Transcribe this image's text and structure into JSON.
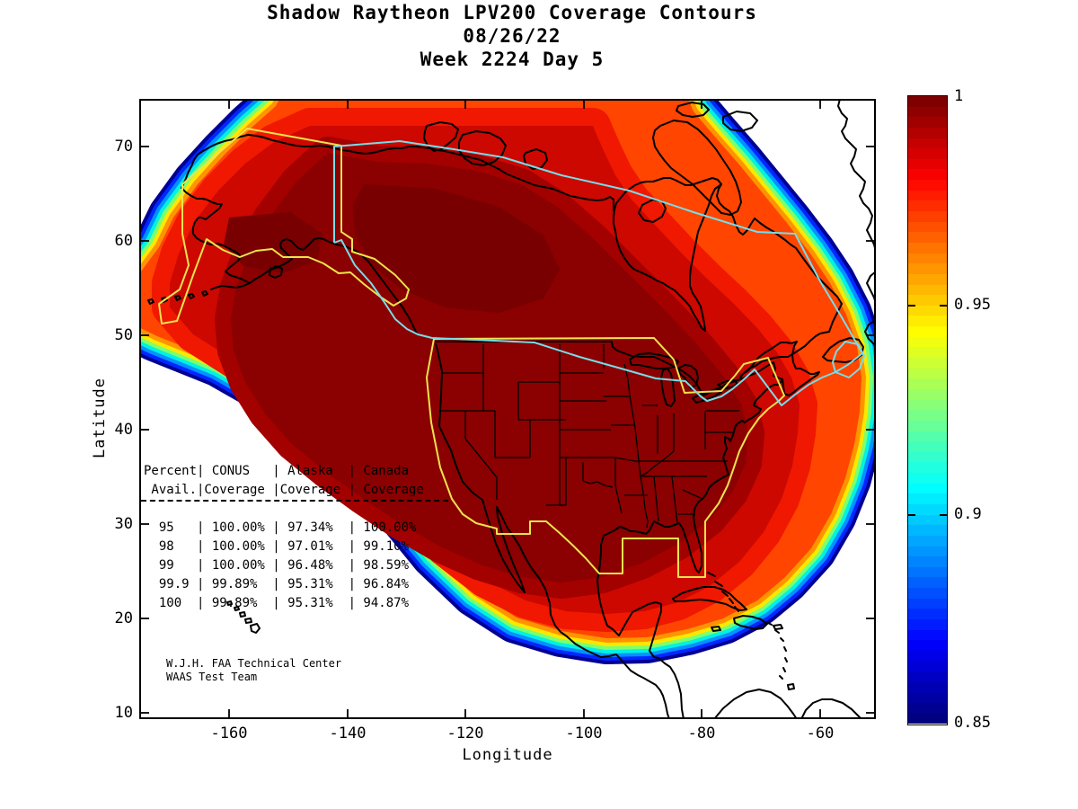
{
  "title": {
    "line1": "Shadow Raytheon LPV200 Coverage Contours",
    "line2": "08/26/22",
    "line3": "Week 2224 Day 5"
  },
  "axes": {
    "xlabel": "Longitude",
    "ylabel": "Latitude",
    "x_tick_labels": [
      "-160",
      "-140",
      "-120",
      "-100",
      "-80",
      "-60"
    ],
    "y_tick_labels": [
      "70",
      "60",
      "50",
      "40",
      "30",
      "20",
      "10"
    ]
  },
  "colorbar": {
    "labels": [
      "1",
      "0.95",
      "0.9",
      "0.85"
    ],
    "min": 0.85,
    "max": 1.0,
    "colormap": "jet",
    "n_bands": 60
  },
  "coverage_table": {
    "header_row1": [
      "Percent",
      "CONUS",
      "Alaska",
      "Canada"
    ],
    "header_row2": [
      "Avail.",
      "Coverage",
      "Coverage",
      "Coverage"
    ],
    "rows": [
      [
        "95",
        "100.00%",
        "97.34%",
        "100.00%"
      ],
      [
        "98",
        "100.00%",
        "97.01%",
        "99.10%"
      ],
      [
        "99",
        "100.00%",
        "96.48%",
        "98.59%"
      ],
      [
        "99.9",
        "99.89%",
        "95.31%",
        "96.84%"
      ],
      [
        "100",
        "99.89%",
        "95.31%",
        "94.87%"
      ]
    ]
  },
  "attribution": {
    "line1": "W.J.H. FAA Technical Center",
    "line2": "WAAS Test Team"
  },
  "map_colors": {
    "coastline": "#000000",
    "conus_alaska_service_volume": "#efe24f",
    "canada_service_volume": "#76dde8",
    "interior_max_coverage": "#8b0000"
  },
  "chart_data": {
    "type": "heatmap",
    "title": "Shadow Raytheon LPV200 Coverage Contours",
    "subtitle": [
      "08/26/22",
      "Week 2224 Day 5"
    ],
    "xlabel": "Longitude",
    "ylabel": "Latitude",
    "xlim": [
      -175,
      -50.5
    ],
    "ylim": [
      10,
      75
    ],
    "x_ticks": [
      -160,
      -140,
      -120,
      -100,
      -80,
      -60
    ],
    "y_ticks": [
      70,
      60,
      50,
      40,
      30,
      20,
      10
    ],
    "colorbar_range": [
      0.85,
      1.0
    ],
    "colorbar_ticks": [
      0.85,
      0.9,
      0.95,
      1
    ],
    "colormap": "jet",
    "description": "Filled contour map of LPV200 coverage availability over North America; dark red interior at 1.0 coverage with rainbow (jet) fringe dropping to 0.85 at the edges; yellow CONUS and Alaska service-volume boundaries and cyan Canada boundary overlaid on black coastlines and US state lines.",
    "series": [
      {
        "name": "CONUS Coverage",
        "x": [
          95,
          98,
          99,
          99.9,
          100
        ],
        "values": [
          100.0,
          100.0,
          100.0,
          99.89,
          99.89
        ]
      },
      {
        "name": "Alaska Coverage",
        "x": [
          95,
          98,
          99,
          99.9,
          100
        ],
        "values": [
          97.34,
          97.01,
          96.48,
          95.31,
          95.31
        ]
      },
      {
        "name": "Canada Coverage",
        "x": [
          95,
          98,
          99,
          99.9,
          100
        ],
        "values": [
          100.0,
          99.1,
          98.59,
          96.84,
          94.87
        ]
      }
    ]
  }
}
